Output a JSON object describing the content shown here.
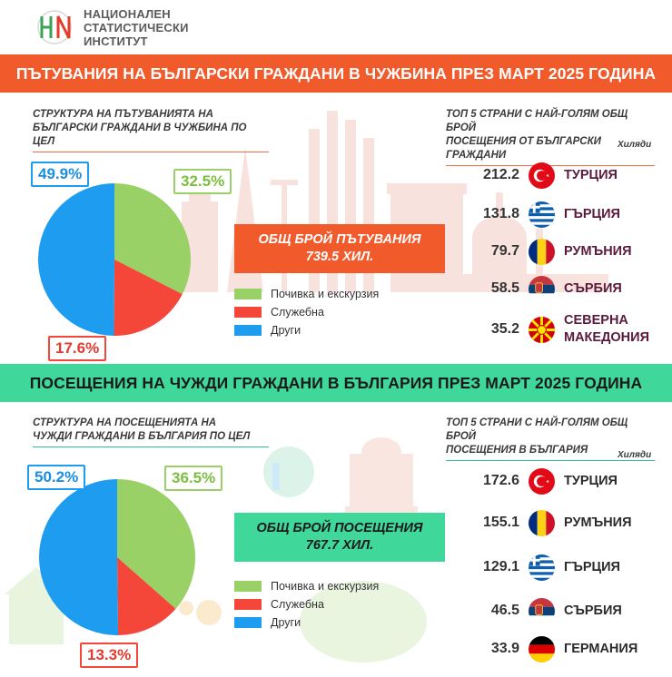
{
  "header": {
    "org_line1": "НАЦИОНАЛЕН",
    "org_line2": "СТАТИСТИЧЕСКИ",
    "org_line3": "ИНСТИТУТ"
  },
  "colors": {
    "orange": "#f15a2b",
    "mint": "#3fd79a",
    "green": "#9ad166",
    "red": "#f4473a",
    "blue": "#1e9df0",
    "country_text": "#5a1a3c"
  },
  "top": {
    "banner": "ПЪТУВАНИЯ НА БЪЛГАРСКИ ГРАЖДАНИ В ЧУЖБИНА ПРЕЗ МАРТ 2025 ГОДИНА",
    "pie_subtitle_1": "СТРУКТУРА НА ПЪТУВАНИЯТА НА",
    "pie_subtitle_2": "БЪЛГАРСКИ ГРАЖДАНИ В ЧУЖБИНА ПО ЦЕЛ",
    "total_line1": "ОБЩ БРОЙ ПЪТУВАНИЯ",
    "total_line2": "739.5 ХИЛ.",
    "countries_subtitle_1": "ТОП 5 СТРАНИ С НАЙ-ГОЛЯМ ОБЩ БРОЙ",
    "countries_subtitle_2": "ПОСЕЩЕНИЯ ОТ БЪЛГАРСКИ ГРАЖДАНИ",
    "unit": "Хиляди",
    "labels": {
      "green": "32.5%",
      "red": "17.6%",
      "blue": "49.9%"
    }
  },
  "bottom": {
    "banner": "ПОСЕЩЕНИЯ НА ЧУЖДИ ГРАЖДАНИ В БЪЛГАРИЯ ПРЕЗ МАРТ 2025 ГОДИНА",
    "pie_subtitle_1": "СТРУКТУРА НА ПОСЕЩЕНИЯТА НА",
    "pie_subtitle_2": "ЧУЖДИ ГРАЖДАНИ В БЪЛГАРИЯ ПО ЦЕЛ",
    "total_line1": "ОБЩ БРОЙ ПОСЕЩЕНИЯ",
    "total_line2": "767.7 ХИЛ.",
    "countries_subtitle_1": "ТОП 5 СТРАНИ С НАЙ-ГОЛЯМ ОБЩ БРОЙ",
    "countries_subtitle_2": "ПОСЕЩЕНИЯ В БЪЛГАРИЯ",
    "unit": "Хиляди",
    "labels": {
      "green": "36.5%",
      "red": "13.3%",
      "blue": "50.2%"
    }
  },
  "legend": {
    "item1": "Почивка и екскурзия",
    "item2": "Служебна",
    "item3": "Други"
  },
  "chart_data": [
    {
      "type": "pie",
      "title": "СТРУКТУРА НА ПЪТУВАНИЯТА НА БЪЛГАРСКИ ГРАЖДАНИ В ЧУЖБИНА ПО ЦЕЛ",
      "categories": [
        "Почивка и екскурзия",
        "Служебна",
        "Други"
      ],
      "values": [
        32.5,
        17.6,
        49.9
      ],
      "colors": [
        "#9ad166",
        "#f4473a",
        "#1e9df0"
      ]
    },
    {
      "type": "bar",
      "title": "ТОП 5 СТРАНИ С НАЙ-ГОЛЯМ ОБЩ БРОЙ ПОСЕЩЕНИЯ ОТ БЪЛГАРСКИ ГРАЖДАНИ",
      "unit": "Хиляди",
      "categories": [
        "ТУРЦИЯ",
        "ГЪРЦИЯ",
        "РУМЪНИЯ",
        "СЪРБИЯ",
        "СЕВЕРНА МАКЕДОНИЯ"
      ],
      "values": [
        212.2,
        131.8,
        79.7,
        58.5,
        35.2
      ]
    },
    {
      "type": "pie",
      "title": "СТРУКТУРА НА ПОСЕЩЕНИЯТА НА ЧУЖДИ ГРАЖДАНИ В БЪЛГАРИЯ ПО ЦЕЛ",
      "categories": [
        "Почивка и екскурзия",
        "Служебна",
        "Други"
      ],
      "values": [
        36.5,
        13.3,
        50.2
      ],
      "colors": [
        "#9ad166",
        "#f4473a",
        "#1e9df0"
      ]
    },
    {
      "type": "bar",
      "title": "ТОП 5 СТРАНИ С НАЙ-ГОЛЯМ ОБЩ БРОЙ ПОСЕЩЕНИЯ В БЪЛГАРИЯ",
      "unit": "Хиляди",
      "categories": [
        "ТУРЦИЯ",
        "РУМЪНИЯ",
        "ГЪРЦИЯ",
        "СЪРБИЯ",
        "ГЕРМАНИЯ"
      ],
      "values": [
        172.6,
        155.1,
        129.1,
        46.5,
        33.9
      ]
    }
  ],
  "countries_top": [
    {
      "value": "212.2",
      "name1": "ТУРЦИЯ",
      "name2": "",
      "flag": "turkey-flag-icon"
    },
    {
      "value": "131.8",
      "name1": "ГЪРЦИЯ",
      "name2": "",
      "flag": "greece-flag-icon"
    },
    {
      "value": "79.7",
      "name1": "РУМЪНИЯ",
      "name2": "",
      "flag": "romania-flag-icon"
    },
    {
      "value": "58.5",
      "name1": "СЪРБИЯ",
      "name2": "",
      "flag": "serbia-flag-icon"
    },
    {
      "value": "35.2",
      "name1": "СЕВЕРНА",
      "name2": "МАКЕДОНИЯ",
      "flag": "north-macedonia-flag-icon"
    }
  ],
  "countries_bottom": [
    {
      "value": "172.6",
      "name1": "ТУРЦИЯ",
      "flag": "turkey-flag-icon"
    },
    {
      "value": "155.1",
      "name1": "РУМЪНИЯ",
      "flag": "romania-flag-icon"
    },
    {
      "value": "129.1",
      "name1": "ГЪРЦИЯ",
      "flag": "greece-flag-icon"
    },
    {
      "value": "46.5",
      "name1": "СЪРБИЯ",
      "flag": "serbia-flag-icon"
    },
    {
      "value": "33.9",
      "name1": "ГЕРМАНИЯ",
      "flag": "germany-flag-icon"
    }
  ]
}
